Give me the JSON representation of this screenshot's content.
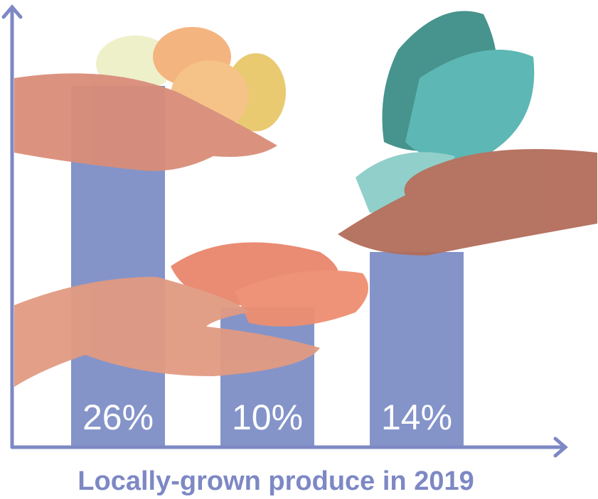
{
  "chart_data": {
    "type": "bar",
    "title": "Locally-grown produce in 2019",
    "categories": [
      null,
      null,
      null
    ],
    "values": [
      26,
      10,
      14
    ],
    "value_labels": [
      "26%",
      "10%",
      "14%"
    ],
    "color": "#8494c9",
    "ylim": [
      0,
      30
    ]
  }
}
